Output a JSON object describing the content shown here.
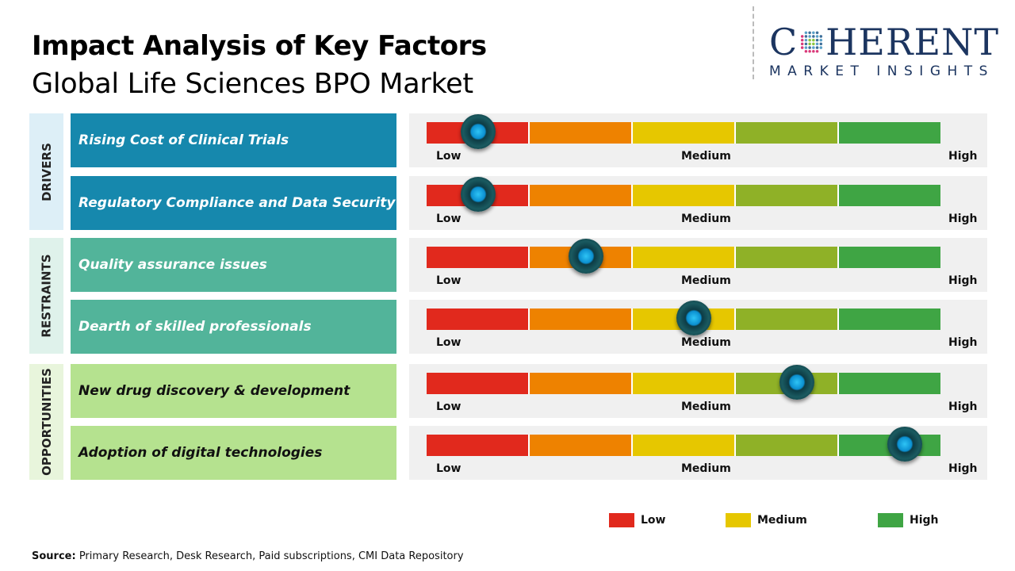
{
  "header": {
    "title": "Impact Analysis of Key Factors",
    "subtitle": "Global Life Sciences BPO Market"
  },
  "logo": {
    "top": "COHERENT",
    "bottom": "MARKET INSIGHTS"
  },
  "colors": {
    "low": "#e1291d",
    "low_medium": "#ee8200",
    "medium": "#e6c700",
    "medium_high": "#8fb127",
    "high": "#3fa544",
    "drivers": "#1688ad",
    "restraints": "#52b49a",
    "opportunities": "#b5e28f"
  },
  "categories": [
    {
      "label": "DRIVERS",
      "factors": [
        {
          "label": "Rising Cost of Clinical Trials",
          "impact": 0.1
        },
        {
          "label": "Regulatory Compliance and Data Security",
          "impact": 0.1
        }
      ]
    },
    {
      "label": "RESTRAINTS",
      "factors": [
        {
          "label": "Quality assurance issues",
          "impact": 0.31
        },
        {
          "label": "Dearth of skilled professionals",
          "impact": 0.52
        }
      ]
    },
    {
      "label": "OPPORTUNITIES",
      "factors": [
        {
          "label": "New drug discovery & development",
          "impact": 0.72
        },
        {
          "label": "Adoption of digital technologies",
          "impact": 0.93
        }
      ]
    }
  ],
  "scale": {
    "low": "Low",
    "medium": "Medium",
    "high": "High"
  },
  "legend": [
    {
      "label": "Low",
      "color": "#e1291d"
    },
    {
      "label": "Medium",
      "color": "#e6c700"
    },
    {
      "label": "High",
      "color": "#3fa544"
    }
  ],
  "source": {
    "label": "Source:",
    "text": " Primary Research, Desk Research, Paid subscriptions, CMI Data Repository"
  }
}
